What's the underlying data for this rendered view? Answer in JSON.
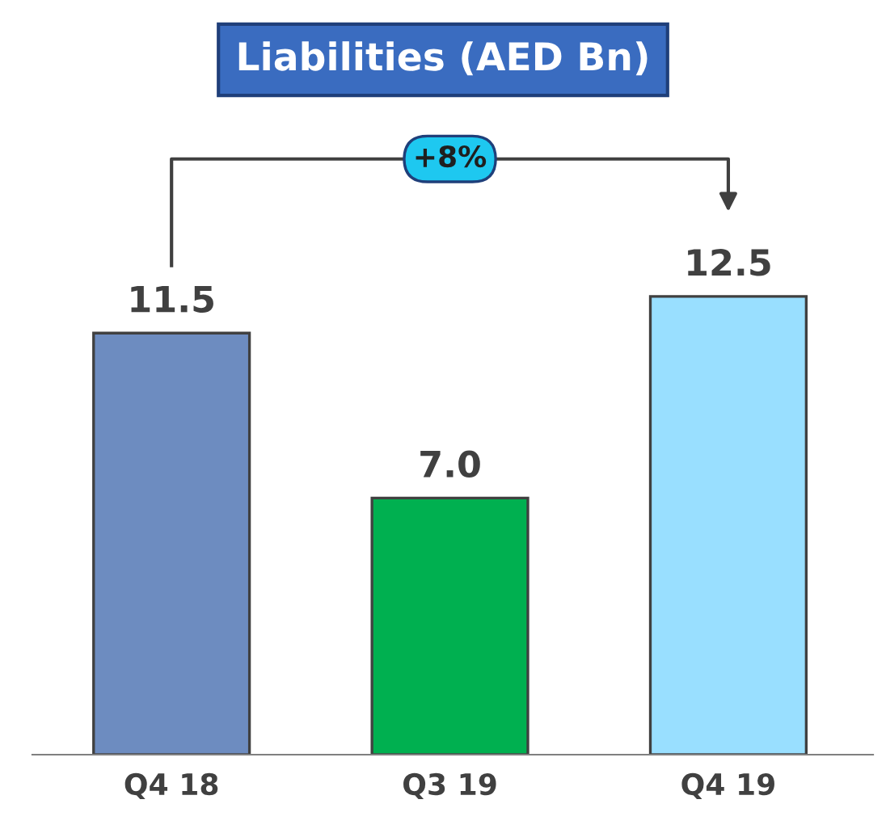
{
  "chart_data": {
    "type": "bar",
    "title": "Liabilities (AED Bn)",
    "categories": [
      "Q4 18",
      "Q3 19",
      "Q4 19"
    ],
    "values": [
      11.5,
      7.0,
      12.5
    ],
    "colors": [
      "#6d8cc0",
      "#00b050",
      "#99dfff"
    ],
    "value_labels": [
      "11.5",
      "7.0",
      "12.5"
    ],
    "annotations": [
      "+8%"
    ],
    "grid": false,
    "legend": false
  }
}
